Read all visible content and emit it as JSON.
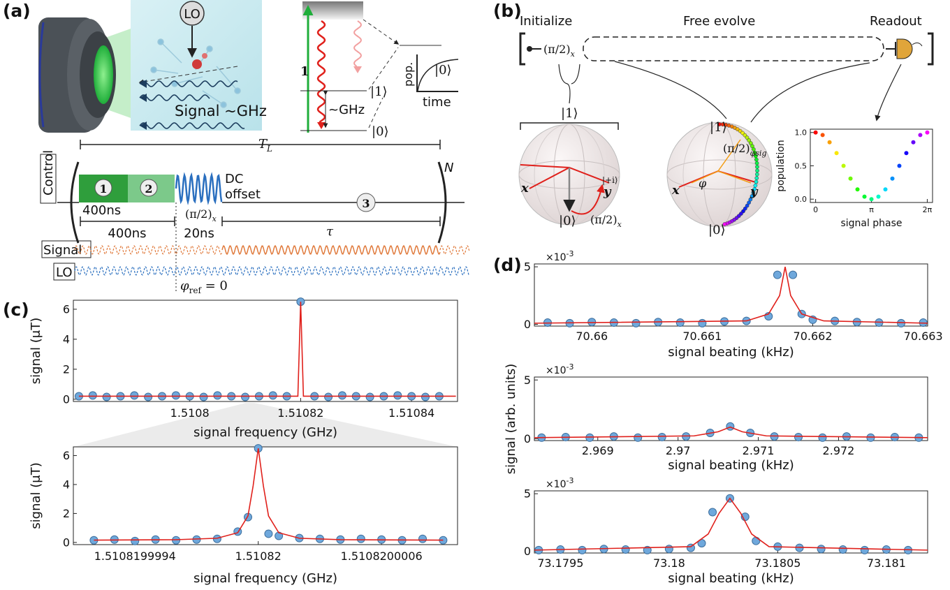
{
  "panel_labels": [
    "(a)",
    "(b)",
    "(c)",
    "(d)"
  ],
  "panel_a": {
    "lo": "LO",
    "signal_label": "Signal ~GHz",
    "transition": "1",
    "ket1": "|1⟩",
    "ket0": "|0⟩",
    "ghz": "~GHz",
    "pop": "pop.",
    "time": "time",
    "ket0_inset": "|0⟩",
    "period": {
      "base": "T",
      "sub": "L"
    },
    "control": "Control",
    "steps": [
      "1",
      "2",
      "3"
    ],
    "dc_offset": [
      "DC",
      "offset"
    ],
    "pulse": {
      "base": "(π/2)",
      "sub": "x"
    },
    "repeat": "N",
    "durations": [
      "400ns",
      "400ns",
      "20ns",
      "τ"
    ],
    "signal_trace": "Signal",
    "lo_trace": "LO",
    "phase_ref": {
      "base": "φ",
      "sub": "ref",
      "rest": " = 0"
    }
  },
  "panel_b": {
    "stages": [
      "Initialize",
      "Free evolve",
      "Readout"
    ],
    "pulse": {
      "base": "(π/2)",
      "sub": "x"
    },
    "sphere1": {
      "ket1": "|1⟩",
      "ket0": "|0⟩",
      "x": "x",
      "y": "y",
      "plus_i": "|+i⟩",
      "pulse": {
        "base": "(π/2)",
        "sub": "x"
      }
    },
    "sphere2": {
      "ket1": "|1⟩",
      "ket0": "|0⟩",
      "x": "x",
      "y": "y",
      "phi": "φ",
      "pulse": {
        "base": "(π/2)",
        "sub": "φsig"
      }
    }
  },
  "panel_d": {
    "ylabel": "signal (arb. units)"
  },
  "chart_data": [
    {
      "type": "scatter",
      "xlabel": "signal phase",
      "ylabel": "population",
      "xlim": [
        -0.3,
        6.58
      ],
      "ylim": [
        -0.05,
        1.05
      ],
      "xticks": [
        0,
        {
          "value": 3.14159,
          "label": "π"
        },
        {
          "value": 6.28319,
          "label": "2π"
        }
      ],
      "yticks": [
        {
          "value": 0,
          "label": "0.0"
        },
        0.5,
        {
          "value": 1,
          "label": "1.0"
        }
      ],
      "series": [
        {
          "colormap": "hsv",
          "marker": "circle",
          "x": [
            0,
            0.393,
            0.785,
            1.178,
            1.571,
            1.963,
            2.356,
            2.749,
            3.142,
            3.534,
            3.927,
            4.32,
            4.712,
            5.105,
            5.498,
            5.89,
            6.283
          ],
          "values": [
            1,
            0.962,
            0.854,
            0.691,
            0.5,
            0.309,
            0.146,
            0.038,
            0,
            0.038,
            0.146,
            0.309,
            0.5,
            0.691,
            0.854,
            0.962,
            1
          ]
        }
      ]
    },
    {
      "type": "scatter",
      "xlabel": "signal frequency (GHz)",
      "ylabel": "signal (μT)",
      "xlim": [
        1.510779,
        1.5108483
      ],
      "ylim": [
        -0.15,
        6.6
      ],
      "xticks": [
        1.5108,
        1.51082,
        1.51084
      ],
      "yticks": [
        0,
        2,
        4,
        6
      ],
      "series": [
        {
          "color": "#6fa8dc",
          "marker": "circle",
          "x": [
            1.51078,
            1.5107825,
            1.510785,
            1.5107875,
            1.51079,
            1.5107925,
            1.510795,
            1.5107975,
            1.5108,
            1.5108025,
            1.510805,
            1.5108075,
            1.51081,
            1.5108125,
            1.510815,
            1.5108175,
            1.51082,
            1.5108225,
            1.510825,
            1.5108275,
            1.51083,
            1.5108325,
            1.510835,
            1.5108375,
            1.51084,
            1.5108425,
            1.510845
          ],
          "values": [
            0.2,
            0.25,
            0.15,
            0.2,
            0.25,
            0.15,
            0.2,
            0.25,
            0.2,
            0.15,
            0.25,
            0.2,
            0.15,
            0.2,
            0.25,
            0.2,
            6.5,
            0.2,
            0.15,
            0.25,
            0.2,
            0.15,
            0.2,
            0.25,
            0.2,
            0.15,
            0.2
          ]
        },
        {
          "color": "#e0201b",
          "marker": "none",
          "x": [
            1.51078,
            1.5108195,
            1.51082,
            1.5108205,
            1.510848
          ],
          "values": [
            0.2,
            0.2,
            6.5,
            0.2,
            0.2
          ]
        }
      ]
    },
    {
      "type": "scatter",
      "xlabel": "signal frequency (GHz)",
      "ylabel": "signal (μT)",
      "xlim": [
        1.5108199991,
        1.51082000097
      ],
      "ylim": [
        -0.15,
        6.6
      ],
      "xticks": [
        1.5108199994,
        1.51082,
        1.5108200006
      ],
      "yticks": [
        0,
        2,
        4,
        6
      ],
      "series": [
        {
          "color": "#6fa8dc",
          "marker": "circle",
          "x": [
            1.5108199992,
            1.5108199993,
            1.5108199994,
            1.5108199995,
            1.5108199996,
            1.5108199997,
            1.5108199998,
            1.5108199999,
            1.51081999995,
            1.51082,
            1.51082000005,
            1.5108200001,
            1.5108200002,
            1.5108200003,
            1.5108200004,
            1.5108200005,
            1.5108200006,
            1.5108200007,
            1.5108200008,
            1.5108200009
          ],
          "values": [
            0.15,
            0.2,
            0.1,
            0.2,
            0.15,
            0.2,
            0.25,
            0.75,
            1.75,
            6.5,
            0.6,
            0.45,
            0.3,
            0.25,
            0.2,
            0.25,
            0.2,
            0.15,
            0.25,
            0.15
          ]
        },
        {
          "color": "#e0201b",
          "marker": "none",
          "x": [
            1.5108199992,
            1.5108199996,
            1.5108199998,
            1.5108199999,
            1.51081999995,
            1.510819999975,
            1.51082,
            1.510820000025,
            1.51082000005,
            1.5108200001,
            1.5108200002,
            1.5108200004,
            1.5108200009
          ],
          "values": [
            0.16,
            0.19,
            0.29,
            0.67,
            1.83,
            3.9,
            6.5,
            3.9,
            1.83,
            0.67,
            0.29,
            0.19,
            0.16
          ]
        }
      ]
    },
    {
      "type": "scatter",
      "xlabel": "signal beating (kHz)",
      "y_exponent": {
        "base": "×10",
        "sup": "-3"
      },
      "xlim": [
        70.65948,
        70.66304
      ],
      "ylim": [
        -0.15,
        5.25
      ],
      "xticks": [
        70.66,
        70.661,
        70.662,
        70.663
      ],
      "yticks": [
        0,
        5
      ],
      "series": [
        {
          "color": "#6fa8dc",
          "marker": "circle",
          "x": [
            70.6596,
            70.6598,
            70.66,
            70.6602,
            70.6604,
            70.6606,
            70.6608,
            70.661,
            70.6612,
            70.6614,
            70.6616,
            70.66168,
            70.66182,
            70.6619,
            70.662,
            70.6622,
            70.6624,
            70.6626,
            70.6628,
            70.663
          ],
          "values": [
            0.15,
            0.1,
            0.2,
            0.15,
            0.1,
            0.2,
            0.15,
            0.1,
            0.25,
            0.3,
            0.7,
            4.3,
            4.3,
            0.9,
            0.4,
            0.3,
            0.2,
            0.15,
            0.1,
            0.15
          ]
        },
        {
          "color": "#e0201b",
          "marker": "none",
          "x": [
            70.65948,
            70.6614,
            70.6616,
            70.6617,
            70.66175,
            70.6618,
            70.6619,
            70.6621,
            70.66304
          ],
          "values": [
            0.1,
            0.3,
            0.9,
            2.5,
            5,
            2.5,
            0.9,
            0.3,
            0.1
          ]
        }
      ]
    },
    {
      "type": "scatter",
      "xlabel": "signal beating (kHz)",
      "y_exponent": {
        "base": "×10",
        "sup": "-3"
      },
      "xlim": [
        2.96821,
        2.97311
      ],
      "ylim": [
        -0.15,
        5.25
      ],
      "xticks": [
        2.969,
        2.97,
        2.971,
        2.972
      ],
      "yticks": [
        0,
        5
      ],
      "series": [
        {
          "color": "#6fa8dc",
          "marker": "circle",
          "x": [
            2.9683,
            2.9686,
            2.9689,
            2.9692,
            2.9695,
            2.9698,
            2.9701,
            2.9704,
            2.97065,
            2.9709,
            2.9712,
            2.9715,
            2.9718,
            2.9721,
            2.9724,
            2.9727,
            2.973
          ],
          "values": [
            0.1,
            0.15,
            0.1,
            0.2,
            0.1,
            0.15,
            0.2,
            0.5,
            1.05,
            0.5,
            0.2,
            0.15,
            0.1,
            0.2,
            0.1,
            0.15,
            0.1
          ]
        },
        {
          "color": "#e0201b",
          "marker": "none",
          "x": [
            2.96821,
            2.9702,
            2.9705,
            2.97065,
            2.9708,
            2.9711,
            2.97311
          ],
          "values": [
            0.1,
            0.25,
            0.6,
            1,
            0.6,
            0.25,
            0.1
          ]
        }
      ]
    },
    {
      "type": "scatter",
      "xlabel": "signal beating (kHz)",
      "y_exponent": {
        "base": "×10",
        "sup": "-3"
      },
      "xlim": [
        73.17938,
        73.18119
      ],
      "ylim": [
        -0.15,
        5.25
      ],
      "xticks": [
        73.1795,
        73.18,
        73.1805,
        73.181
      ],
      "yticks": [
        0,
        5
      ],
      "series": [
        {
          "color": "#6fa8dc",
          "marker": "circle",
          "x": [
            73.1794,
            73.1795,
            73.1796,
            73.1797,
            73.1798,
            73.1799,
            73.18,
            73.1801,
            73.18015,
            73.1802,
            73.18028,
            73.18035,
            73.1804,
            73.1805,
            73.1806,
            73.1807,
            73.1808,
            73.1809,
            73.181,
            73.1811
          ],
          "values": [
            0.1,
            0.15,
            0.1,
            0.2,
            0.15,
            0.1,
            0.2,
            0.3,
            0.7,
            3.4,
            4.6,
            3,
            0.9,
            0.4,
            0.3,
            0.2,
            0.15,
            0.1,
            0.15,
            0.1
          ]
        },
        {
          "color": "#e0201b",
          "marker": "none",
          "x": [
            73.17938,
            73.1801,
            73.18018,
            73.18023,
            73.18028,
            73.18033,
            73.18038,
            73.18046,
            73.18119
          ],
          "values": [
            0.1,
            0.4,
            1.5,
            3.3,
            4.6,
            3.3,
            1.5,
            0.4,
            0.1
          ]
        }
      ]
    }
  ]
}
